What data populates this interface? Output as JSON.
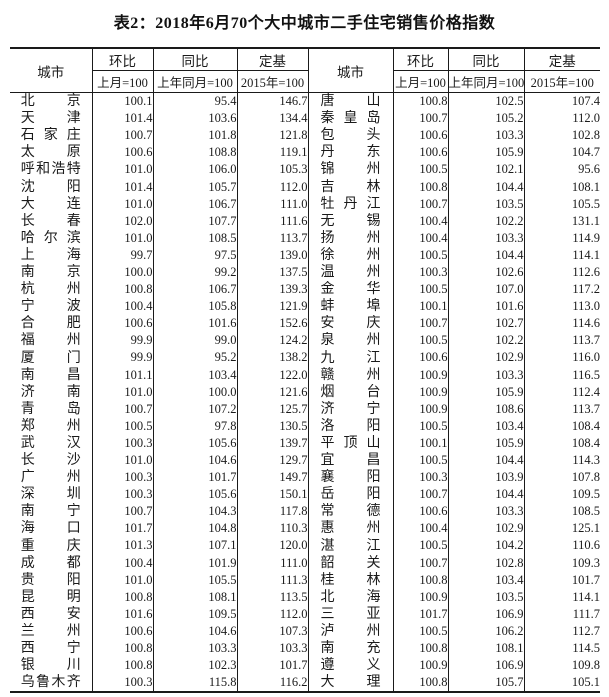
{
  "title": "表2：2018年6月70个大中城市二手住宅销售价格指数",
  "header": {
    "city": "城市",
    "mom_label": "环比",
    "mom_sub": "上月=100",
    "yoy_label": "同比",
    "yoy_sub": "上年同月=100",
    "base_label": "定基",
    "base_sub": "2015年=100"
  },
  "left": [
    {
      "city": "北京",
      "mom": "100.1",
      "yoy": "95.4",
      "base": "146.7"
    },
    {
      "city": "天津",
      "mom": "101.4",
      "yoy": "103.6",
      "base": "134.4"
    },
    {
      "city": "石家庄",
      "mom": "100.7",
      "yoy": "101.8",
      "base": "121.8"
    },
    {
      "city": "太原",
      "mom": "100.6",
      "yoy": "108.8",
      "base": "119.1"
    },
    {
      "city": "呼和浩特",
      "mom": "101.0",
      "yoy": "106.0",
      "base": "105.3"
    },
    {
      "city": "沈阳",
      "mom": "101.4",
      "yoy": "105.7",
      "base": "112.0"
    },
    {
      "city": "大连",
      "mom": "101.0",
      "yoy": "106.7",
      "base": "111.0"
    },
    {
      "city": "长春",
      "mom": "102.0",
      "yoy": "107.7",
      "base": "111.6"
    },
    {
      "city": "哈尔滨",
      "mom": "101.0",
      "yoy": "108.5",
      "base": "113.7"
    },
    {
      "city": "上海",
      "mom": "99.7",
      "yoy": "97.5",
      "base": "139.0"
    },
    {
      "city": "南京",
      "mom": "100.0",
      "yoy": "99.2",
      "base": "137.5"
    },
    {
      "city": "杭州",
      "mom": "100.8",
      "yoy": "106.7",
      "base": "139.3"
    },
    {
      "city": "宁波",
      "mom": "100.4",
      "yoy": "105.8",
      "base": "121.9"
    },
    {
      "city": "合肥",
      "mom": "100.6",
      "yoy": "101.6",
      "base": "152.6"
    },
    {
      "city": "福州",
      "mom": "99.9",
      "yoy": "99.0",
      "base": "124.2"
    },
    {
      "city": "厦门",
      "mom": "99.9",
      "yoy": "95.2",
      "base": "138.2"
    },
    {
      "city": "南昌",
      "mom": "101.1",
      "yoy": "103.4",
      "base": "122.0"
    },
    {
      "city": "济南",
      "mom": "101.0",
      "yoy": "100.0",
      "base": "121.6"
    },
    {
      "city": "青岛",
      "mom": "100.7",
      "yoy": "107.2",
      "base": "125.7"
    },
    {
      "city": "郑州",
      "mom": "100.5",
      "yoy": "97.8",
      "base": "130.5"
    },
    {
      "city": "武汉",
      "mom": "100.3",
      "yoy": "105.6",
      "base": "139.7"
    },
    {
      "city": "长沙",
      "mom": "101.0",
      "yoy": "104.6",
      "base": "129.7"
    },
    {
      "city": "广州",
      "mom": "100.3",
      "yoy": "101.7",
      "base": "149.7"
    },
    {
      "city": "深圳",
      "mom": "100.3",
      "yoy": "105.6",
      "base": "150.1"
    },
    {
      "city": "南宁",
      "mom": "100.7",
      "yoy": "104.3",
      "base": "117.8"
    },
    {
      "city": "海口",
      "mom": "101.7",
      "yoy": "104.8",
      "base": "110.3"
    },
    {
      "city": "重庆",
      "mom": "101.3",
      "yoy": "107.1",
      "base": "120.0"
    },
    {
      "city": "成都",
      "mom": "100.4",
      "yoy": "101.9",
      "base": "111.0"
    },
    {
      "city": "贵阳",
      "mom": "101.0",
      "yoy": "105.5",
      "base": "111.3"
    },
    {
      "city": "昆明",
      "mom": "100.8",
      "yoy": "108.1",
      "base": "113.5"
    },
    {
      "city": "西安",
      "mom": "101.6",
      "yoy": "109.5",
      "base": "112.0"
    },
    {
      "city": "兰州",
      "mom": "100.6",
      "yoy": "104.6",
      "base": "107.3"
    },
    {
      "city": "西宁",
      "mom": "100.8",
      "yoy": "103.3",
      "base": "103.3"
    },
    {
      "city": "银川",
      "mom": "100.8",
      "yoy": "102.3",
      "base": "101.7"
    },
    {
      "city": "乌鲁木齐",
      "mom": "100.3",
      "yoy": "115.8",
      "base": "116.2"
    }
  ],
  "right": [
    {
      "city": "唐山",
      "mom": "100.8",
      "yoy": "102.5",
      "base": "107.4"
    },
    {
      "city": "秦皇岛",
      "mom": "100.7",
      "yoy": "105.2",
      "base": "112.0"
    },
    {
      "city": "包头",
      "mom": "100.6",
      "yoy": "103.3",
      "base": "102.8"
    },
    {
      "city": "丹东",
      "mom": "100.6",
      "yoy": "105.9",
      "base": "104.7"
    },
    {
      "city": "锦州",
      "mom": "100.5",
      "yoy": "102.1",
      "base": "95.6"
    },
    {
      "city": "吉林",
      "mom": "100.8",
      "yoy": "104.4",
      "base": "108.1"
    },
    {
      "city": "牡丹江",
      "mom": "100.7",
      "yoy": "103.5",
      "base": "105.5"
    },
    {
      "city": "无锡",
      "mom": "100.4",
      "yoy": "102.2",
      "base": "131.1"
    },
    {
      "city": "扬州",
      "mom": "100.4",
      "yoy": "103.3",
      "base": "114.9"
    },
    {
      "city": "徐州",
      "mom": "100.5",
      "yoy": "104.4",
      "base": "114.1"
    },
    {
      "city": "温州",
      "mom": "100.3",
      "yoy": "102.6",
      "base": "112.6"
    },
    {
      "city": "金华",
      "mom": "100.5",
      "yoy": "107.0",
      "base": "117.2"
    },
    {
      "city": "蚌埠",
      "mom": "100.1",
      "yoy": "101.6",
      "base": "113.0"
    },
    {
      "city": "安庆",
      "mom": "100.7",
      "yoy": "102.7",
      "base": "114.6"
    },
    {
      "city": "泉州",
      "mom": "100.5",
      "yoy": "102.2",
      "base": "113.7"
    },
    {
      "city": "九江",
      "mom": "100.6",
      "yoy": "102.9",
      "base": "116.0"
    },
    {
      "city": "赣州",
      "mom": "100.9",
      "yoy": "103.3",
      "base": "116.5"
    },
    {
      "city": "烟台",
      "mom": "100.9",
      "yoy": "105.9",
      "base": "112.4"
    },
    {
      "city": "济宁",
      "mom": "100.9",
      "yoy": "108.6",
      "base": "113.7"
    },
    {
      "city": "洛阳",
      "mom": "100.5",
      "yoy": "103.4",
      "base": "108.4"
    },
    {
      "city": "平顶山",
      "mom": "100.1",
      "yoy": "105.9",
      "base": "108.4"
    },
    {
      "city": "宜昌",
      "mom": "100.5",
      "yoy": "104.4",
      "base": "114.3"
    },
    {
      "city": "襄阳",
      "mom": "100.3",
      "yoy": "103.9",
      "base": "107.8"
    },
    {
      "city": "岳阳",
      "mom": "100.7",
      "yoy": "104.4",
      "base": "109.5"
    },
    {
      "city": "常德",
      "mom": "100.6",
      "yoy": "103.3",
      "base": "108.5"
    },
    {
      "city": "惠州",
      "mom": "100.4",
      "yoy": "102.9",
      "base": "125.1"
    },
    {
      "city": "湛江",
      "mom": "100.5",
      "yoy": "104.2",
      "base": "110.6"
    },
    {
      "city": "韶关",
      "mom": "100.7",
      "yoy": "102.8",
      "base": "109.3"
    },
    {
      "city": "桂林",
      "mom": "100.8",
      "yoy": "103.4",
      "base": "101.7"
    },
    {
      "city": "北海",
      "mom": "100.9",
      "yoy": "103.5",
      "base": "114.1"
    },
    {
      "city": "三亚",
      "mom": "101.7",
      "yoy": "106.9",
      "base": "111.7"
    },
    {
      "city": "泸州",
      "mom": "100.5",
      "yoy": "106.2",
      "base": "112.7"
    },
    {
      "city": "南充",
      "mom": "100.8",
      "yoy": "108.1",
      "base": "114.5"
    },
    {
      "city": "遵义",
      "mom": "100.9",
      "yoy": "106.9",
      "base": "109.8"
    },
    {
      "city": "大理",
      "mom": "100.8",
      "yoy": "105.7",
      "base": "105.1"
    }
  ]
}
